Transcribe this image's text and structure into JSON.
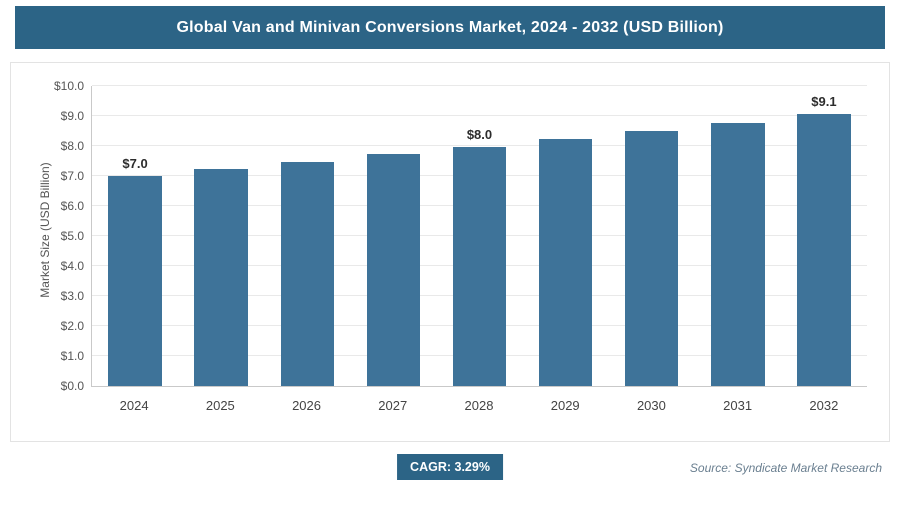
{
  "header": {
    "title": "Global Van and Minivan Conversions Market, 2024 - 2032 (USD Billion)"
  },
  "chart_data": {
    "type": "bar",
    "categories": [
      "2024",
      "2025",
      "2026",
      "2027",
      "2028",
      "2029",
      "2030",
      "2031",
      "2032"
    ],
    "values": [
      7.0,
      7.23,
      7.47,
      7.72,
      7.97,
      8.23,
      8.5,
      8.78,
      9.07
    ],
    "data_labels": [
      "$7.0",
      "",
      "",
      "",
      "$8.0",
      "",
      "",
      "",
      "$9.1"
    ],
    "title": "Global Van and Minivan Conversions Market, 2024 - 2032 (USD Billion)",
    "xlabel": "",
    "ylabel": "Market Size (USD Billion)",
    "ylim": [
      0,
      10
    ],
    "yticks": [
      "$0.0",
      "$1.0",
      "$2.0",
      "$3.0",
      "$4.0",
      "$5.0",
      "$6.0",
      "$7.0",
      "$8.0",
      "$9.0",
      "$10.0"
    ],
    "grid": true,
    "legend": "none",
    "bar_color": "#3e7399"
  },
  "footer": {
    "cagr_label": "CAGR: 3.29%",
    "source": "Source: Syndicate Market Research"
  }
}
